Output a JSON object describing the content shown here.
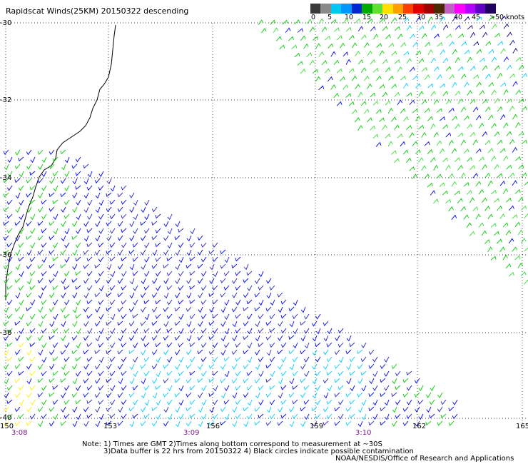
{
  "title": "Rapidscat Winds(25KM)  20150322  descending",
  "legend": {
    "labels": [
      "0",
      "5",
      "10",
      "15",
      "20",
      "25",
      "30",
      "35",
      "40",
      "45",
      ">50 knots"
    ],
    "colors": [
      "#3a3a3a",
      "#8a8a8a",
      "#00c8f0",
      "#0096ff",
      "#0028d0",
      "#00aa00",
      "#60e030",
      "#ffe000",
      "#ffa000",
      "#ff4000",
      "#e00000",
      "#a00000",
      "#4a2800",
      "#c060c0",
      "#ff00ff",
      "#b000ff",
      "#6000c0",
      "#200060"
    ]
  },
  "latitude_labels": [
    "-30",
    "-32",
    "-34",
    "-36",
    "-38",
    "-40"
  ],
  "longitude_labels": [
    "150",
    "153",
    "156",
    "159",
    "162",
    "165"
  ],
  "time_labels": [
    "3:08",
    "3:09",
    "3:10"
  ],
  "notes": [
    "Note: 1) Times are GMT 2)Times along bottom correspond to measurement at ~30S",
    "3)Data buffer is 22 hrs from 20150322 4) Black circles indicate possible contamination"
  ],
  "credit": "NOAA/NESDIS/Office of Research and Applications",
  "colors": {
    "grid": "#000000",
    "coast": "#000000",
    "time_text": "#7a1c8a"
  },
  "wind_speed_colors": [
    "#0000ff",
    "#2222cc",
    "#00cc00",
    "#33dd33",
    "#00ccff",
    "#66dddd",
    "#ffee00",
    "#000088"
  ]
}
